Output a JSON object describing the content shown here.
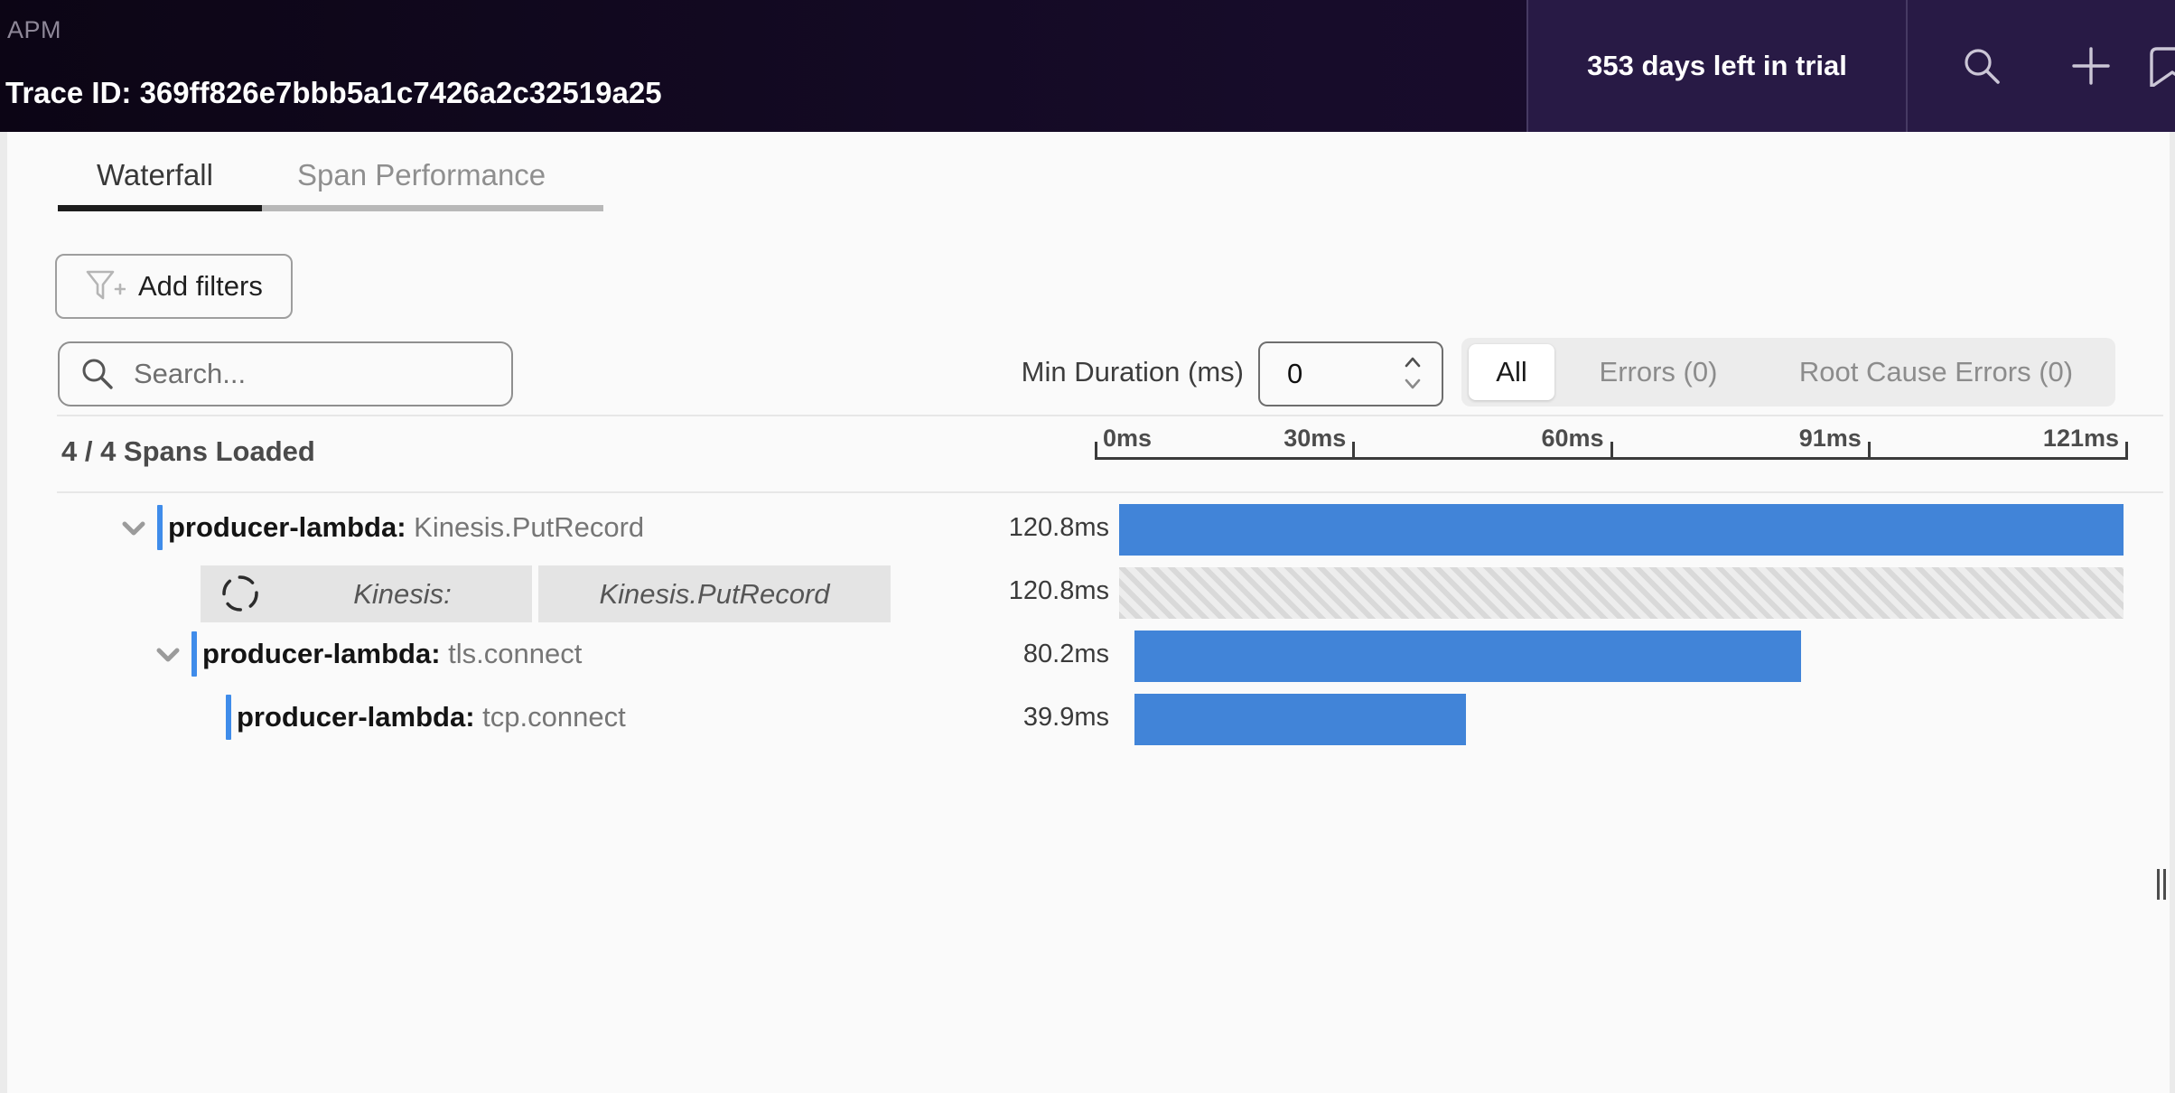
{
  "header": {
    "app": "APM",
    "trace_id": "Trace ID: 369ff826e7bbb5a1c7426a2c32519a25",
    "trial": "353 days left in trial",
    "icons": [
      "search-icon",
      "plus-icon",
      "bookmark-icon"
    ]
  },
  "tabs": {
    "waterfall": "Waterfall",
    "span_performance": "Span Performance",
    "active": "Waterfall"
  },
  "toolbar": {
    "add_filters": "Add filters",
    "search_placeholder": "Search...",
    "min_duration_label": "Min Duration (ms)",
    "min_duration_value": "0",
    "filter_all": "All",
    "filter_errors": "Errors (0)",
    "filter_root_cause": "Root Cause Errors (0)",
    "active_filter": "All"
  },
  "summary": {
    "spans_loaded": "4 / 4 Spans Loaded"
  },
  "timeline": {
    "ticks": [
      "0ms",
      "30ms",
      "60ms",
      "91ms",
      "121ms"
    ],
    "range_ms": [
      0,
      121
    ]
  },
  "waterfall": {
    "rows": [
      {
        "service": "producer-lambda:",
        "operation": "Kinesis.PutRecord",
        "duration": "120.8ms",
        "duration_ms": 120.8,
        "start_ms": 0,
        "indent": 0,
        "chevron": true,
        "bar_style": "solid",
        "pending": false
      },
      {
        "service": "Kinesis:",
        "operation": "Kinesis.PutRecord",
        "duration": "120.8ms",
        "duration_ms": 120.8,
        "start_ms": 0,
        "indent": 1,
        "chevron": false,
        "bar_style": "hatched",
        "pending": true
      },
      {
        "service": "producer-lambda:",
        "operation": "tls.connect",
        "duration": "80.2ms",
        "duration_ms": 80.2,
        "start_ms": 1.8,
        "indent": 1,
        "chevron": true,
        "bar_style": "solid",
        "pending": false
      },
      {
        "service": "producer-lambda:",
        "operation": "tcp.connect",
        "duration": "39.9ms",
        "duration_ms": 39.9,
        "start_ms": 1.8,
        "indent": 2,
        "chevron": false,
        "bar_style": "solid",
        "pending": false
      }
    ]
  },
  "colors": {
    "bar_blue": "#4184d8",
    "accent_blue": "#3f8cea",
    "header_bg": "#0c0515",
    "header_panel_bg": "#281a45"
  }
}
